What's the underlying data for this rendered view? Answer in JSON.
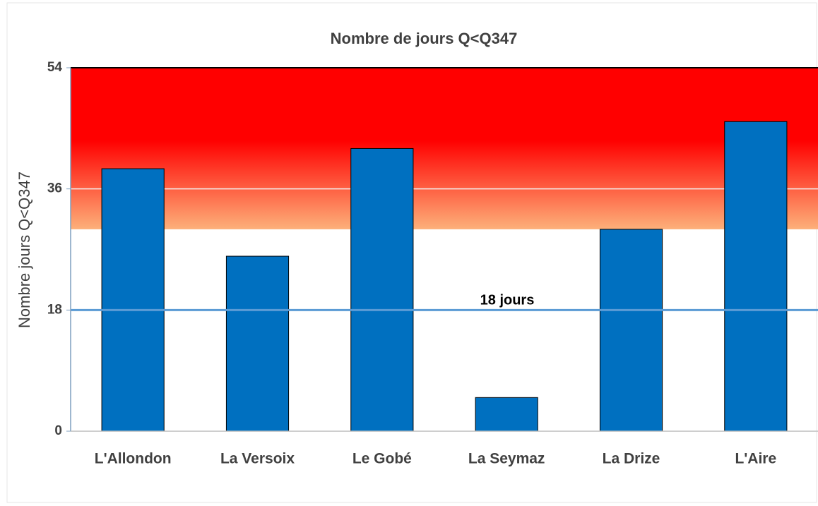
{
  "chart_data": {
    "type": "bar",
    "title": "Nombre de jours Q<Q347",
    "y_label": "Nombre jours Q<Q347",
    "categories": [
      "L'Allondon",
      "La Versoix",
      "Le Gobé",
      "La Seymaz",
      "La Drize",
      "L'Aire"
    ],
    "values": [
      39,
      26,
      42,
      5,
      30,
      46
    ],
    "color": "#0070c0",
    "ylim": [
      0,
      54
    ],
    "yticks": [
      0,
      18,
      36,
      54
    ],
    "grid": true,
    "highlight_band": {
      "from": 30,
      "to": 54,
      "color_top": "#ff0000",
      "color_bottom": "#fdb07a"
    },
    "reference_line": {
      "value": 18,
      "label": "18 jours",
      "color": "#5b9bd5"
    }
  }
}
